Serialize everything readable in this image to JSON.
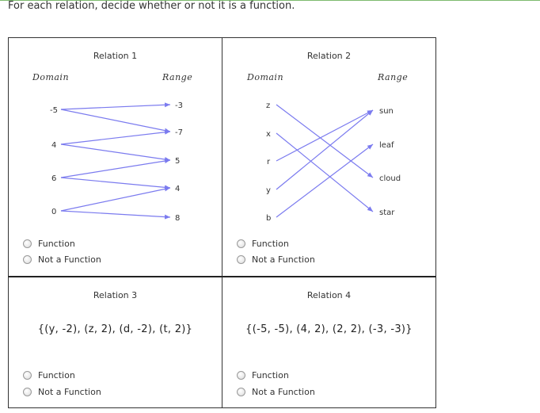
{
  "instructions": "For each relation, decide whether or not it is a function.",
  "colors": {
    "arrow": "#7b7bef",
    "border": "#333333",
    "accent_rule": "#7dbb6f"
  },
  "relation1": {
    "title": "Relation 1",
    "domain_label": "Domain",
    "range_label": "Range",
    "domain": [
      "-5",
      "4",
      "6",
      "0"
    ],
    "range": [
      "-3",
      "-7",
      "5",
      "4",
      "8"
    ],
    "mapping": [
      [
        "-5",
        "-3"
      ],
      [
        "-5",
        "-7"
      ],
      [
        "4",
        "-7"
      ],
      [
        "4",
        "5"
      ],
      [
        "6",
        "5"
      ],
      [
        "6",
        "4"
      ],
      [
        "0",
        "4"
      ],
      [
        "0",
        "8"
      ]
    ]
  },
  "relation2": {
    "title": "Relation 2",
    "domain_label": "Domain",
    "range_label": "Range",
    "domain": [
      "z",
      "x",
      "r",
      "y",
      "b"
    ],
    "range": [
      "sun",
      "leaf",
      "cloud",
      "star"
    ],
    "mapping": [
      [
        "z",
        "cloud"
      ],
      [
        "x",
        "star"
      ],
      [
        "r",
        "sun"
      ],
      [
        "y",
        "sun"
      ],
      [
        "b",
        "leaf"
      ]
    ]
  },
  "relation3": {
    "title": "Relation 3",
    "set": "{(y, -2), (z, 2), (d, -2), (t, 2)}"
  },
  "relation4": {
    "title": "Relation 4",
    "set": "{(-5, -5), (4, 2), (2, 2), (-3, -3)}"
  },
  "options": {
    "function": "Function",
    "not_function": "Not a Function"
  }
}
